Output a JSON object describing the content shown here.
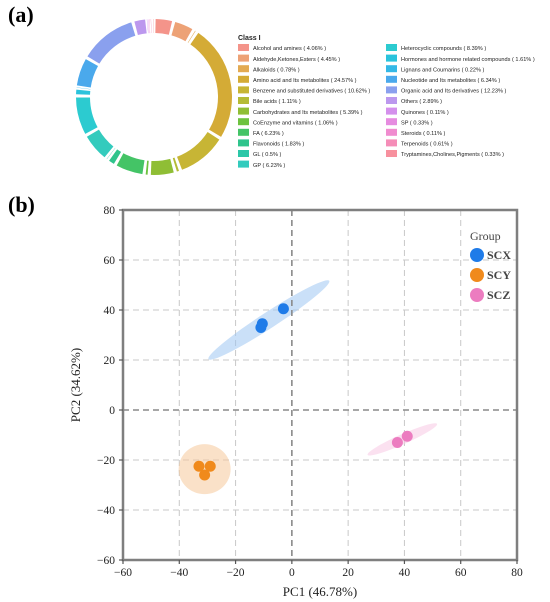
{
  "panel_labels": {
    "a": "(a)",
    "b": "(b)"
  },
  "chart_data": [
    {
      "type": "pie",
      "legend_title": "Class I",
      "slices": [
        {
          "name": "Alcohol and amines ( 4.06% )",
          "value": 4.06,
          "color": "#f4948a"
        },
        {
          "name": "Aldehyde,Ketones,Esters ( 4.45% )",
          "value": 4.45,
          "color": "#eda276"
        },
        {
          "name": "Alkaloids ( 0.78% )",
          "value": 0.78,
          "color": "#e3aa52"
        },
        {
          "name": "Amino acid and Its metabolites ( 24.57% )",
          "value": 24.57,
          "color": "#d4ab36"
        },
        {
          "name": "Benzene and substituted derivatives ( 10.62% )",
          "value": 10.62,
          "color": "#c7b535"
        },
        {
          "name": "Bile acids ( 1.11% )",
          "value": 1.11,
          "color": "#b4bb36"
        },
        {
          "name": "Carbohydrates and Its metabolites ( 5.39% )",
          "value": 5.39,
          "color": "#8fbe35"
        },
        {
          "name": "CoEnzyme and vitamins ( 1.06% )",
          "value": 1.06,
          "color": "#6dc23f"
        },
        {
          "name": "FA ( 6.23% )",
          "value": 6.23,
          "color": "#44c466"
        },
        {
          "name": "Flavonoids ( 1.83% )",
          "value": 1.83,
          "color": "#2fc48c"
        },
        {
          "name": "GL ( 0.5% )",
          "value": 0.5,
          "color": "#2bc7a8"
        },
        {
          "name": "GP ( 6.23% )",
          "value": 6.23,
          "color": "#33cbbd"
        },
        {
          "name": "Heterocyclic compounds ( 8.39% )",
          "value": 8.39,
          "color": "#2ccbd0"
        },
        {
          "name": "Hormones and hormone related compounds ( 1.61% )",
          "value": 1.61,
          "color": "#2ac3dc"
        },
        {
          "name": "Lignans and Coumarins ( 0.22% )",
          "value": 0.22,
          "color": "#34b8e6"
        },
        {
          "name": "Nucleotide and Its metabolites ( 6.34% )",
          "value": 6.34,
          "color": "#4aa9ec"
        },
        {
          "name": "Organic acid and Its derivatives ( 12.23% )",
          "value": 12.23,
          "color": "#8aa0ee"
        },
        {
          "name": "Others ( 2.89% )",
          "value": 2.89,
          "color": "#bc98ee"
        },
        {
          "name": "Quinones ( 0.11% )",
          "value": 0.11,
          "color": "#d490ec"
        },
        {
          "name": "SP ( 0.33% )",
          "value": 0.33,
          "color": "#e68ce0"
        },
        {
          "name": "Steroids ( 0.11% )",
          "value": 0.11,
          "color": "#f08ccf"
        },
        {
          "name": "Terpenoids ( 0.61% )",
          "value": 0.61,
          "color": "#f58db8"
        },
        {
          "name": "Tryptamines,Cholines,Pigments ( 0.33% )",
          "value": 0.33,
          "color": "#f7909e"
        }
      ]
    },
    {
      "type": "scatter",
      "xlabel": "PC1 (46.78%)",
      "ylabel": "PC2 (34.62%)",
      "xlim": [
        -60,
        80
      ],
      "ylim": [
        -60,
        80
      ],
      "xticks": [
        -60,
        -40,
        -20,
        0,
        20,
        40,
        60,
        80
      ],
      "yticks": [
        -60,
        -40,
        -20,
        0,
        20,
        40,
        60,
        80
      ],
      "grid": true,
      "legend_title": "Group",
      "legend_position": "top-right",
      "series": [
        {
          "name": "SCX",
          "color": "#1f7be8",
          "ellipse_color": "#9fc7f2",
          "points": [
            [
              -10.5,
              34.5
            ],
            [
              -3,
              40.5
            ],
            [
              -11,
              33
            ]
          ]
        },
        {
          "name": "SCY",
          "color": "#f08a1c",
          "ellipse_color": "#f5c99a",
          "points": [
            [
              -33,
              -22.5
            ],
            [
              -29,
              -22.5
            ],
            [
              -31,
              -26
            ]
          ]
        },
        {
          "name": "SCZ",
          "color": "#ec7cc0",
          "ellipse_color": "#f7c8e4",
          "points": [
            [
              41,
              -10.5
            ],
            [
              37.5,
              -13
            ]
          ]
        }
      ]
    }
  ]
}
